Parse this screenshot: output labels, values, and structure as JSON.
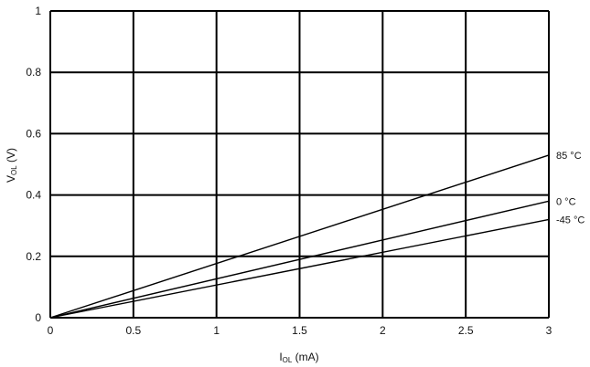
{
  "chart_data": {
    "type": "line",
    "xlabel": {
      "main": "I",
      "sub": "OL",
      "unit": " (mA)"
    },
    "ylabel": {
      "main": "V",
      "sub": "OL",
      "unit": " (V)"
    },
    "xlim": [
      0,
      3
    ],
    "ylim": [
      0,
      1
    ],
    "xticks": [
      0,
      0.5,
      1,
      1.5,
      2,
      2.5,
      3
    ],
    "yticks": [
      0,
      0.2,
      0.4,
      0.6,
      0.8,
      1
    ],
    "xtick_labels": [
      "0",
      "0.5",
      "1",
      "1.5",
      "2",
      "2.5",
      "3"
    ],
    "ytick_labels": [
      "0",
      "0.2",
      "0.4",
      "0.6",
      "0.8",
      "1"
    ],
    "grid": true,
    "series": [
      {
        "name": "85 °C",
        "x": [
          0,
          3
        ],
        "y": [
          0,
          0.53
        ]
      },
      {
        "name": "0 °C",
        "x": [
          0,
          3
        ],
        "y": [
          0,
          0.38
        ]
      },
      {
        "name": "-45 °C",
        "x": [
          0,
          3
        ],
        "y": [
          0,
          0.32
        ]
      }
    ]
  }
}
